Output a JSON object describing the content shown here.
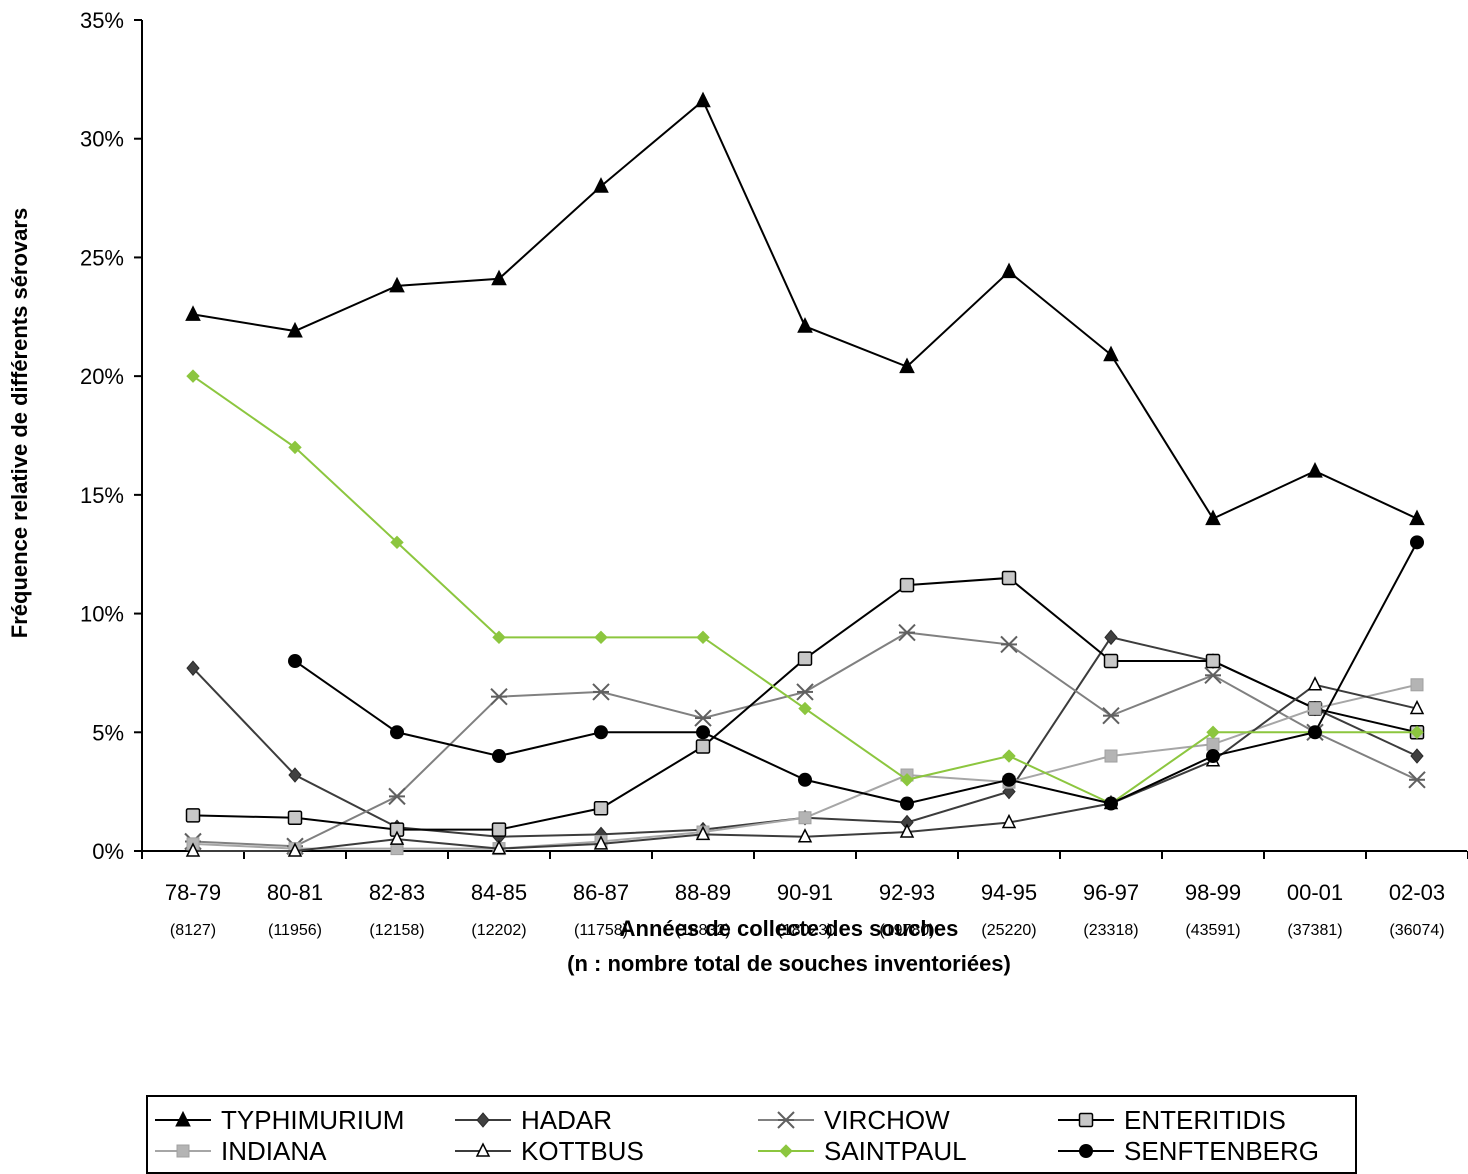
{
  "chart_data": {
    "type": "line",
    "title": "",
    "xlabel": "Années de collecte des souches",
    "xlabel_line2": "(n : nombre total de souches inventoriées)",
    "ylabel": "Fréquence relative de différents sérovars",
    "ylim": [
      0,
      35
    ],
    "y_unit": "%",
    "yticks": [
      "0%",
      "5%",
      "10%",
      "15%",
      "20%",
      "25%",
      "30%",
      "35%"
    ],
    "grid": false,
    "legend_position": "bottom",
    "categories": [
      "78-79",
      "80-81",
      "82-83",
      "84-85",
      "86-87",
      "88-89",
      "90-91",
      "92-93",
      "94-95",
      "96-97",
      "98-99",
      "00-01",
      "02-03"
    ],
    "counts": [
      "(8127)",
      "(11956)",
      "(12158)",
      "(12202)",
      "(11758)",
      "(18832)",
      "(18023)",
      "(19780)",
      "(25220)",
      "(23318)",
      "(43591)",
      "(37381)",
      "(36074)"
    ],
    "series": [
      {
        "name": "TYPHIMURIUM",
        "color": "#000000",
        "marker": "triangle-filled",
        "values": [
          22.6,
          21.9,
          23.8,
          24.1,
          28.0,
          31.6,
          22.1,
          20.4,
          24.4,
          20.9,
          14.0,
          16.0,
          14.0
        ]
      },
      {
        "name": "HADAR",
        "color": "#3c3c3c",
        "marker": "diamond-filled",
        "values": [
          7.7,
          3.2,
          1.0,
          0.6,
          0.7,
          0.9,
          1.4,
          1.2,
          2.5,
          9.0,
          8.0,
          6.0,
          4.0
        ]
      },
      {
        "name": "VIRCHOW",
        "color": "#808080",
        "marker": "asterisk",
        "values": [
          0.4,
          0.2,
          2.3,
          6.5,
          6.7,
          5.6,
          6.7,
          9.2,
          8.7,
          5.7,
          7.4,
          5.0,
          3.0
        ]
      },
      {
        "name": "ENTERITIDIS",
        "color": "#000000",
        "marker": "square-gray",
        "values": [
          1.5,
          1.4,
          0.9,
          0.9,
          1.8,
          4.4,
          8.1,
          11.2,
          11.5,
          8.0,
          8.0,
          6.0,
          5.0
        ]
      },
      {
        "name": "INDIANA",
        "color": "#a6a6a6",
        "marker": "square-small",
        "values": [
          0.3,
          0.1,
          0.1,
          0.1,
          0.4,
          0.8,
          1.4,
          3.2,
          2.9,
          4.0,
          4.5,
          6.0,
          7.0
        ]
      },
      {
        "name": "KOTTBUS",
        "color": "#3c3c3c",
        "marker": "triangle-open",
        "values": [
          0.0,
          0.0,
          0.5,
          0.1,
          0.3,
          0.7,
          0.6,
          0.8,
          1.2,
          2.0,
          3.8,
          7.0,
          6.0
        ]
      },
      {
        "name": "SAINTPAUL",
        "color": "#8cc63f",
        "marker": "diamond-green",
        "values": [
          20.0,
          17.0,
          13.0,
          9.0,
          9.0,
          9.0,
          6.0,
          3.0,
          4.0,
          2.0,
          5.0,
          5.0,
          5.0
        ]
      },
      {
        "name": "SENFTENBERG",
        "color": "#000000",
        "marker": "circle-filled",
        "values": [
          null,
          8.0,
          5.0,
          4.0,
          5.0,
          5.0,
          3.0,
          2.0,
          3.0,
          2.0,
          4.0,
          5.0,
          13.0
        ]
      }
    ]
  }
}
